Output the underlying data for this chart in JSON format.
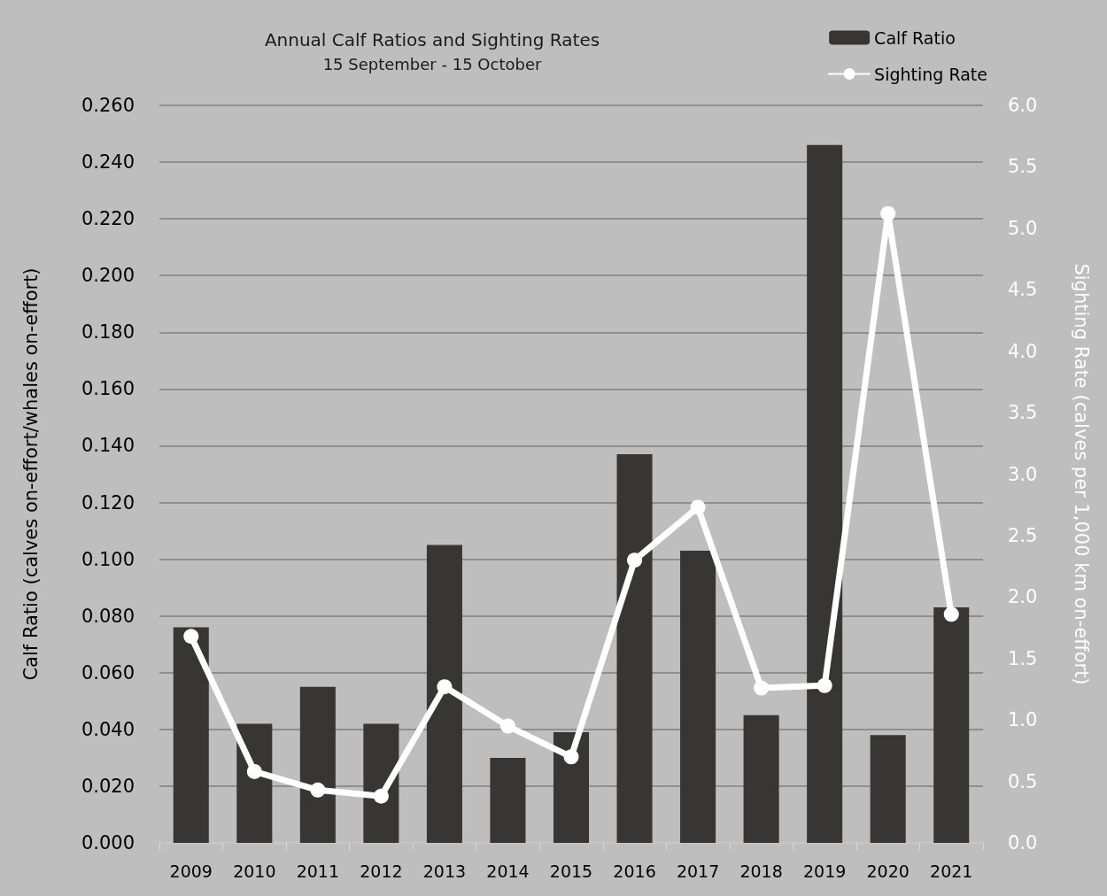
{
  "chart_data": {
    "type": "bar",
    "title": "Annual Calf Ratios and Sighting Rates",
    "subtitle": "15 September - 15 October",
    "ylabel": "Calf Ratio (calves on-effort/whales on-effort)",
    "y2label": "Sighting Rate (calves per 1,000 km on-effort)",
    "categories": [
      "2009",
      "2010",
      "2011",
      "2012",
      "2013",
      "2014",
      "2015",
      "2016",
      "2017",
      "2018",
      "2019",
      "2020",
      "2021"
    ],
    "series": [
      {
        "name": "Calf Ratio",
        "color": "#383635",
        "values": [
          0.076,
          0.042,
          0.055,
          0.042,
          0.105,
          0.03,
          0.039,
          0.137,
          0.103,
          0.045,
          0.246,
          0.038,
          0.083
        ]
      },
      {
        "name": "Sighting Rate",
        "type": "line",
        "axis": "y2",
        "color": "#ffffff",
        "values": [
          1.68,
          0.58,
          0.43,
          0.38,
          1.27,
          0.95,
          0.7,
          2.3,
          2.73,
          1.26,
          1.28,
          5.12,
          1.86
        ]
      }
    ],
    "ylim": [
      0,
      0.26
    ],
    "yticks": [
      {
        "value": 0,
        "label": "0.000"
      },
      {
        "value": 0.02,
        "label": "0.020"
      },
      {
        "value": 0.04,
        "label": "0.040"
      },
      {
        "value": 0.06,
        "label": "0.060"
      },
      {
        "value": 0.08,
        "label": "0.080"
      },
      {
        "value": 0.1,
        "label": "0.100"
      },
      {
        "value": 0.12,
        "label": "0.120"
      },
      {
        "value": 0.14,
        "label": "0.140"
      },
      {
        "value": 0.16,
        "label": "0.160"
      },
      {
        "value": 0.18,
        "label": "0.180"
      },
      {
        "value": 0.2,
        "label": "0.200"
      },
      {
        "value": 0.22,
        "label": "0.220"
      },
      {
        "value": 0.24,
        "label": "0.240"
      },
      {
        "value": 0.26,
        "label": "0.260"
      }
    ],
    "y2lim": [
      0,
      6
    ],
    "y2ticks": [
      {
        "value": 0,
        "label": "0.0"
      },
      0.5,
      {
        "value": 1,
        "label": "1.0"
      },
      1.5,
      {
        "value": 2,
        "label": "2.0"
      },
      2.5,
      {
        "value": 3,
        "label": "3.0"
      },
      3.5,
      {
        "value": 4,
        "label": "4.0"
      },
      4.5,
      {
        "value": 5,
        "label": "5.0"
      },
      5.5,
      {
        "value": 6,
        "label": "6.0"
      }
    ],
    "grid": "y",
    "legend": "top right",
    "marker": "circle",
    "line_style": "solid"
  }
}
